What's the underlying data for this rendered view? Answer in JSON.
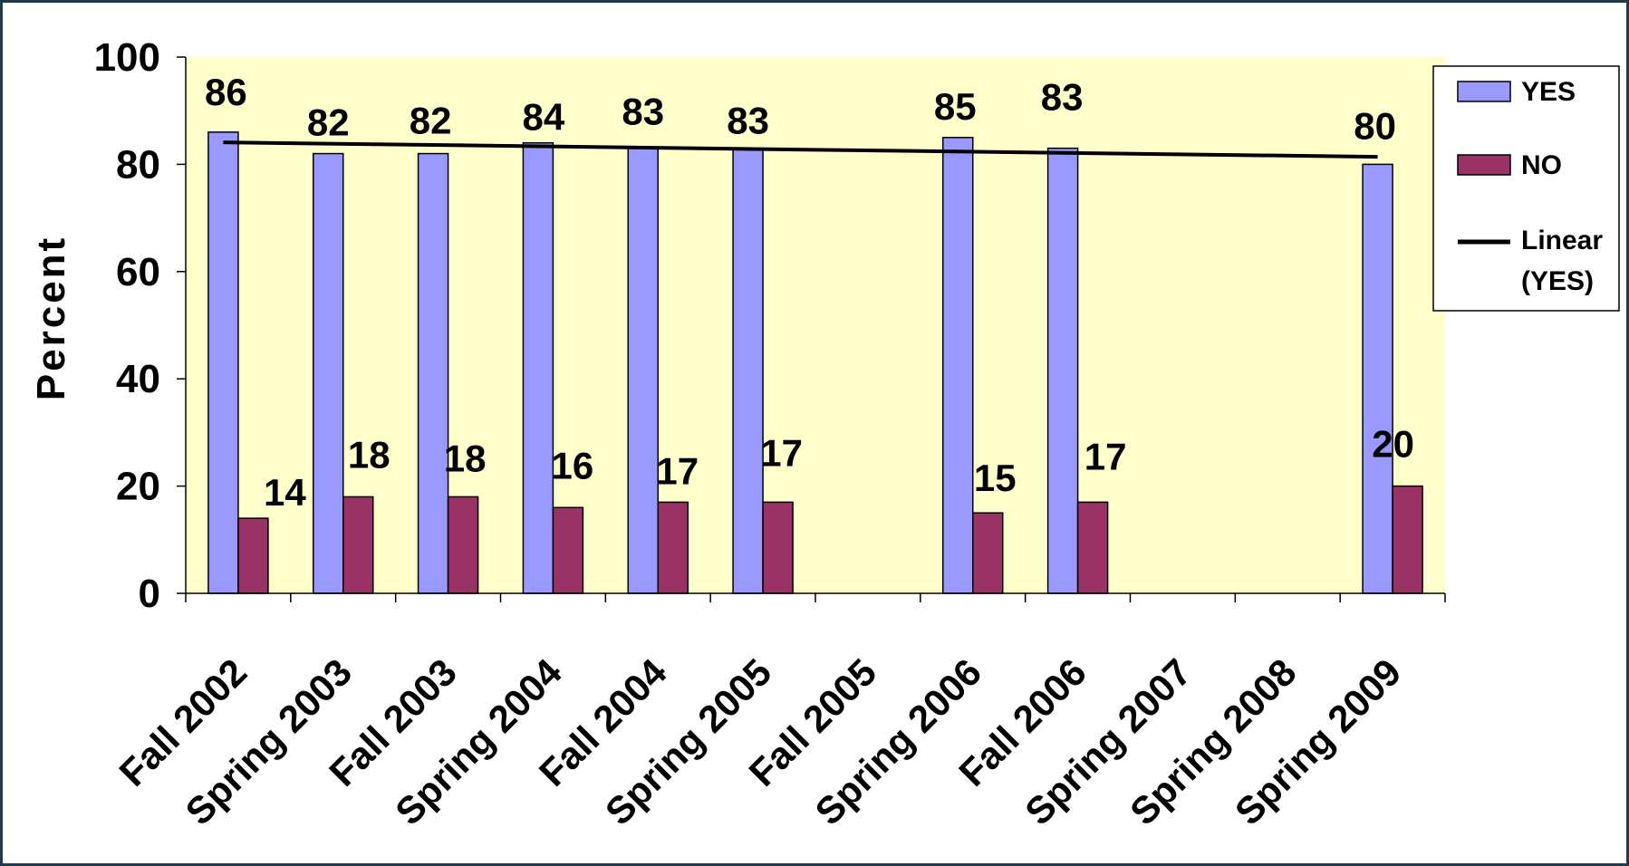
{
  "chart_data": {
    "type": "bar",
    "ylabel": "Percent",
    "xlabel": "",
    "ylim": [
      0,
      100
    ],
    "yticks": [
      0,
      20,
      40,
      60,
      80,
      100
    ],
    "grid": false,
    "legend_position": "top-right",
    "categories": [
      "Fall 2002",
      "Spring 2003",
      "Fall 2003",
      "Spring 2004",
      "Fall 2004",
      "Spring 2005",
      "Fall 2005",
      "Spring 2006",
      "Fall 2006",
      "Spring 2007",
      "Spring 2008",
      "Spring 2009"
    ],
    "series": [
      {
        "name": "YES",
        "color": "#9999ff",
        "values": [
          86,
          82,
          82,
          84,
          83,
          83,
          null,
          85,
          83,
          null,
          null,
          80
        ],
        "labels": [
          "86",
          "82",
          "82",
          "84",
          "83",
          "83",
          "",
          "85",
          "83",
          "",
          "",
          "80"
        ]
      },
      {
        "name": "NO",
        "color": "#993366",
        "values": [
          14,
          18,
          18,
          16,
          17,
          17,
          null,
          15,
          17,
          null,
          null,
          20
        ],
        "labels": [
          "14",
          "18",
          "18",
          "16",
          "17",
          "17",
          "",
          "15",
          "17",
          "",
          "",
          "20"
        ]
      }
    ],
    "trendline": {
      "name": "Linear",
      "name_line2": "(YES)",
      "series": "YES",
      "color": "#000000",
      "start": 84.1,
      "end": 81.4
    },
    "plot_background": "#ffffcc"
  }
}
